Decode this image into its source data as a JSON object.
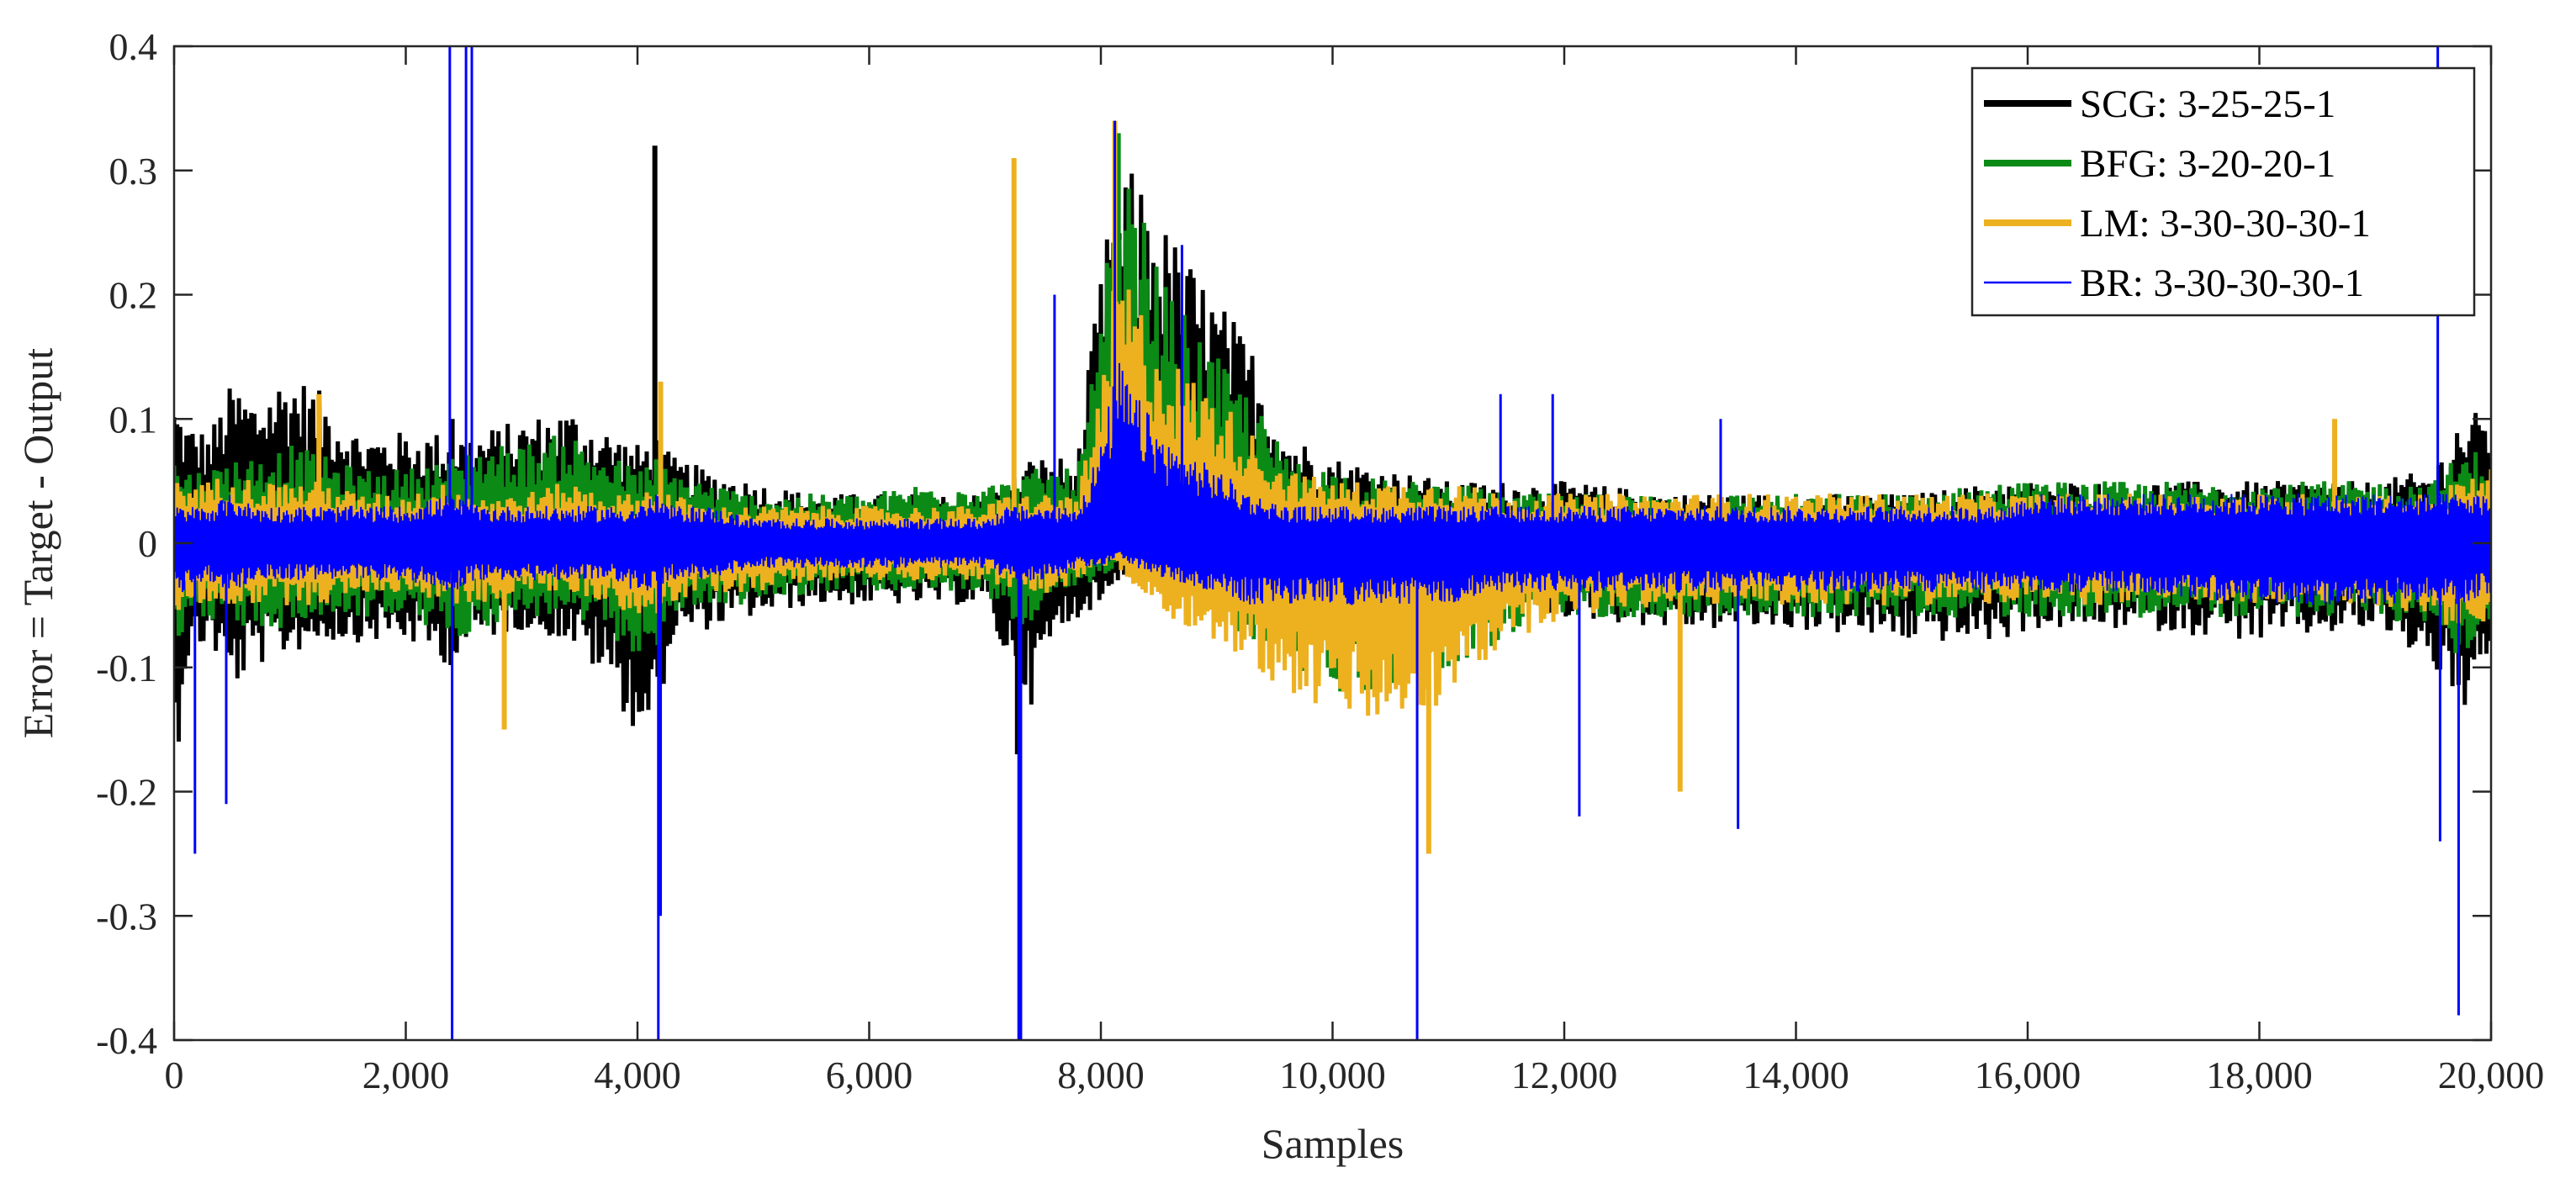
{
  "chart_data": {
    "type": "line",
    "title": "",
    "xlabel": "Samples",
    "ylabel": "Error = Target - Output",
    "xlim": [
      0,
      20000
    ],
    "ylim": [
      -0.4,
      0.4
    ],
    "x_ticks": [
      0,
      2000,
      4000,
      6000,
      8000,
      10000,
      12000,
      14000,
      16000,
      18000,
      20000
    ],
    "x_tick_labels": [
      "0",
      "2,000",
      "4,000",
      "6,000",
      "8,000",
      "10,000",
      "12,000",
      "14,000",
      "16,000",
      "18,000",
      "20,000"
    ],
    "y_ticks": [
      -0.4,
      -0.3,
      -0.2,
      -0.1,
      0,
      0.1,
      0.2,
      0.3,
      0.4
    ],
    "y_tick_labels": [
      "-0.4",
      "-0.3",
      "-0.2",
      "-0.1",
      "0",
      "0.1",
      "0.2",
      "0.3",
      "0.4"
    ],
    "grid": false,
    "legend_position": "top-right",
    "series": [
      {
        "name": "SCG: 3-25-25-1",
        "color": "#000000",
        "envelope_x": [
          0,
          100,
          300,
          500,
          700,
          1000,
          1300,
          1600,
          2000,
          2400,
          2600,
          3000,
          3400,
          3800,
          4000,
          4150,
          4300,
          4600,
          5000,
          5500,
          6000,
          6500,
          7000,
          7200,
          7400,
          7600,
          7800,
          8000,
          8150,
          8300,
          8600,
          9000,
          9300,
          9600,
          10000,
          10500,
          11000,
          11500,
          12000,
          13000,
          14000,
          15000,
          15800,
          16000,
          17000,
          18000,
          19000,
          19500,
          19700,
          20000
        ],
        "envelope_upper": [
          0.12,
          0.1,
          0.09,
          0.13,
          0.12,
          0.14,
          0.12,
          0.09,
          0.09,
          0.09,
          0.09,
          0.1,
          0.11,
          0.09,
          0.08,
          0.09,
          0.07,
          0.06,
          0.05,
          0.04,
          0.04,
          0.04,
          0.04,
          0.05,
          0.07,
          0.07,
          0.07,
          0.22,
          0.3,
          0.3,
          0.25,
          0.2,
          0.16,
          0.09,
          0.07,
          0.06,
          0.05,
          0.05,
          0.05,
          0.04,
          0.04,
          0.04,
          0.05,
          0.05,
          0.05,
          0.05,
          0.05,
          0.06,
          0.1,
          0.11
        ],
        "envelope_lower": [
          -0.2,
          -0.1,
          -0.08,
          -0.12,
          -0.1,
          -0.09,
          -0.08,
          -0.08,
          -0.08,
          -0.1,
          -0.08,
          -0.07,
          -0.08,
          -0.12,
          -0.16,
          -0.15,
          -0.08,
          -0.07,
          -0.06,
          -0.05,
          -0.05,
          -0.05,
          -0.05,
          -0.1,
          -0.13,
          -0.08,
          -0.06,
          -0.05,
          -0.03,
          -0.02,
          -0.02,
          -0.04,
          -0.05,
          -0.06,
          -0.06,
          -0.06,
          -0.06,
          -0.06,
          -0.06,
          -0.07,
          -0.07,
          -0.08,
          -0.08,
          -0.07,
          -0.07,
          -0.08,
          -0.07,
          -0.1,
          -0.14,
          -0.12
        ],
        "spikes": [
          [
            4150,
            0.32
          ],
          [
            2400,
            0.1
          ],
          [
            7280,
            -0.17
          ]
        ]
      },
      {
        "name": "BFG: 3-20-20-1",
        "color": "#0b8a16",
        "envelope_x": [
          0,
          100,
          300,
          500,
          700,
          1000,
          1300,
          1600,
          2000,
          2400,
          2600,
          3000,
          3400,
          3800,
          4000,
          4150,
          4300,
          4600,
          5000,
          5500,
          6000,
          6500,
          7000,
          7200,
          7400,
          7600,
          7800,
          8000,
          8150,
          8300,
          8600,
          9000,
          9300,
          9600,
          10000,
          10500,
          11000,
          11500,
          12000,
          13000,
          14000,
          15000,
          15800,
          16000,
          17000,
          18000,
          19000,
          19500,
          19700,
          20000
        ],
        "envelope_upper": [
          0.07,
          0.06,
          0.06,
          0.07,
          0.07,
          0.08,
          0.07,
          0.06,
          0.06,
          0.07,
          0.08,
          0.08,
          0.09,
          0.07,
          0.06,
          0.07,
          0.06,
          0.05,
          0.04,
          0.04,
          0.04,
          0.05,
          0.05,
          0.05,
          0.06,
          0.06,
          0.06,
          0.18,
          0.31,
          0.28,
          0.2,
          0.15,
          0.12,
          0.07,
          0.06,
          0.05,
          0.05,
          0.04,
          0.04,
          0.04,
          0.04,
          0.04,
          0.05,
          0.05,
          0.05,
          0.05,
          0.05,
          0.05,
          0.07,
          0.08
        ],
        "envelope_lower": [
          -0.08,
          -0.07,
          -0.06,
          -0.07,
          -0.07,
          -0.07,
          -0.06,
          -0.06,
          -0.06,
          -0.08,
          -0.07,
          -0.06,
          -0.06,
          -0.08,
          -0.09,
          -0.09,
          -0.06,
          -0.05,
          -0.05,
          -0.04,
          -0.04,
          -0.04,
          -0.04,
          -0.06,
          -0.07,
          -0.05,
          -0.04,
          -0.03,
          -0.02,
          -0.03,
          -0.04,
          -0.06,
          -0.08,
          -0.1,
          -0.12,
          -0.12,
          -0.1,
          -0.08,
          -0.06,
          -0.06,
          -0.06,
          -0.06,
          -0.06,
          -0.06,
          -0.06,
          -0.06,
          -0.06,
          -0.07,
          -0.09,
          -0.08
        ],
        "spikes": [
          [
            8150,
            0.33
          ]
        ]
      },
      {
        "name": "LM: 3-30-30-30-1",
        "color": "#edb120",
        "envelope_x": [
          0,
          100,
          300,
          500,
          700,
          1000,
          1300,
          1600,
          2000,
          2400,
          2600,
          3000,
          3400,
          3800,
          4000,
          4150,
          4300,
          4600,
          5000,
          5500,
          6000,
          6500,
          7000,
          7200,
          7400,
          7600,
          7800,
          8000,
          8150,
          8300,
          8600,
          9000,
          9300,
          9600,
          10000,
          10500,
          11000,
          11500,
          12000,
          13000,
          14000,
          15000,
          15800,
          16000,
          17000,
          18000,
          19000,
          19500,
          19700,
          20000
        ],
        "envelope_upper": [
          0.05,
          0.05,
          0.05,
          0.06,
          0.05,
          0.05,
          0.05,
          0.04,
          0.04,
          0.05,
          0.04,
          0.04,
          0.05,
          0.04,
          0.04,
          0.05,
          0.04,
          0.03,
          0.03,
          0.03,
          0.03,
          0.03,
          0.03,
          0.04,
          0.04,
          0.04,
          0.04,
          0.12,
          0.24,
          0.2,
          0.15,
          0.12,
          0.09,
          0.06,
          0.05,
          0.05,
          0.05,
          0.04,
          0.04,
          0.04,
          0.04,
          0.04,
          0.04,
          0.04,
          0.04,
          0.04,
          0.04,
          0.04,
          0.05,
          0.06
        ],
        "envelope_lower": [
          -0.06,
          -0.05,
          -0.05,
          -0.05,
          -0.05,
          -0.05,
          -0.05,
          -0.04,
          -0.04,
          -0.05,
          -0.05,
          -0.04,
          -0.04,
          -0.05,
          -0.06,
          -0.06,
          -0.05,
          -0.04,
          -0.04,
          -0.03,
          -0.03,
          -0.03,
          -0.03,
          -0.04,
          -0.04,
          -0.04,
          -0.03,
          -0.02,
          -0.02,
          -0.04,
          -0.06,
          -0.08,
          -0.1,
          -0.12,
          -0.14,
          -0.15,
          -0.13,
          -0.08,
          -0.06,
          -0.05,
          -0.05,
          -0.05,
          -0.05,
          -0.05,
          -0.05,
          -0.05,
          -0.05,
          -0.06,
          -0.08,
          -0.06
        ],
        "spikes": [
          [
            7250,
            0.31
          ],
          [
            8120,
            0.34
          ],
          [
            4200,
            0.13
          ],
          [
            2850,
            -0.15
          ],
          [
            10830,
            -0.25
          ],
          [
            13000,
            -0.2
          ],
          [
            1250,
            0.12
          ],
          [
            18650,
            0.1
          ]
        ]
      },
      {
        "name": "BR: 3-30-30-30-1",
        "color": "#0000ff",
        "envelope_x": [
          0,
          100,
          300,
          500,
          700,
          1000,
          1300,
          1600,
          2000,
          2400,
          2600,
          3000,
          3400,
          3800,
          4000,
          4150,
          4300,
          4600,
          5000,
          5500,
          6000,
          6500,
          7000,
          7200,
          7400,
          7600,
          7800,
          8000,
          8150,
          8300,
          8600,
          9000,
          9300,
          9600,
          10000,
          10500,
          11000,
          11500,
          12000,
          13000,
          14000,
          15000,
          15800,
          16000,
          17000,
          18000,
          19000,
          19500,
          19700,
          20000
        ],
        "envelope_upper": [
          0.03,
          0.03,
          0.03,
          0.04,
          0.03,
          0.03,
          0.03,
          0.03,
          0.03,
          0.04,
          0.03,
          0.03,
          0.03,
          0.03,
          0.03,
          0.04,
          0.03,
          0.03,
          0.02,
          0.02,
          0.02,
          0.02,
          0.02,
          0.03,
          0.03,
          0.03,
          0.03,
          0.08,
          0.15,
          0.12,
          0.08,
          0.06,
          0.04,
          0.03,
          0.03,
          0.03,
          0.03,
          0.03,
          0.03,
          0.03,
          0.03,
          0.03,
          0.03,
          0.04,
          0.04,
          0.04,
          0.04,
          0.04,
          0.04,
          0.04
        ],
        "envelope_lower": [
          -0.04,
          -0.04,
          -0.03,
          -0.04,
          -0.03,
          -0.03,
          -0.03,
          -0.03,
          -0.03,
          -0.04,
          -0.03,
          -0.03,
          -0.03,
          -0.03,
          -0.04,
          -0.04,
          -0.03,
          -0.03,
          -0.02,
          -0.02,
          -0.02,
          -0.02,
          -0.02,
          -0.03,
          -0.03,
          -0.03,
          -0.02,
          -0.02,
          -0.01,
          -0.02,
          -0.03,
          -0.04,
          -0.05,
          -0.05,
          -0.05,
          -0.05,
          -0.05,
          -0.04,
          -0.04,
          -0.04,
          -0.04,
          -0.04,
          -0.04,
          -0.04,
          -0.04,
          -0.05,
          -0.05,
          -0.05,
          -0.05,
          -0.04
        ],
        "spikes": [
          [
            2380,
            0.4
          ],
          [
            2400,
            -0.4
          ],
          [
            2520,
            0.4
          ],
          [
            2570,
            0.4
          ],
          [
            4180,
            -0.4
          ],
          [
            4200,
            -0.3
          ],
          [
            7290,
            -0.4
          ],
          [
            7310,
            -0.4
          ],
          [
            8120,
            0.34
          ],
          [
            10730,
            -0.4
          ],
          [
            12130,
            -0.22
          ],
          [
            13500,
            -0.23
          ],
          [
            19540,
            0.4
          ],
          [
            19560,
            -0.24
          ],
          [
            19720,
            -0.38
          ],
          [
            180,
            -0.25
          ],
          [
            450,
            -0.21
          ],
          [
            11900,
            0.12
          ],
          [
            13350,
            0.1
          ],
          [
            11450,
            0.12
          ],
          [
            8700,
            0.24
          ],
          [
            7600,
            0.2
          ]
        ]
      }
    ]
  }
}
